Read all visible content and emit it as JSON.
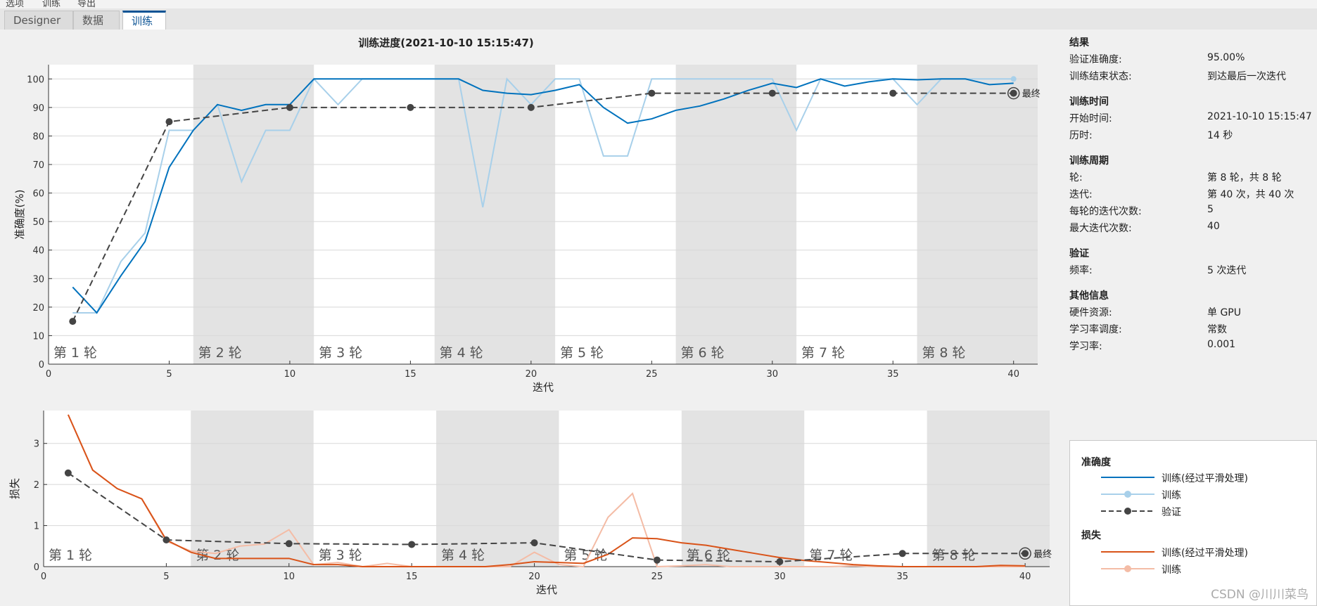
{
  "menubar": {
    "items": [
      "选项",
      "训练",
      "导出"
    ]
  },
  "tabs": [
    {
      "label": "Designer",
      "active": false
    },
    {
      "label": "数据",
      "active": false
    },
    {
      "label": "训练",
      "active": true
    }
  ],
  "plot_title": "训练进度(2021-10-10 15:15:47)",
  "epoch_labels": [
    "第 1 轮",
    "第 2 轮",
    "第 3 轮",
    "第 4 轮",
    "第 5 轮",
    "第 6 轮",
    "第 7 轮",
    "第 8 轮"
  ],
  "final_label": "最终",
  "colors": {
    "smoothed_accuracy": "#0072bd",
    "raw_accuracy": "#a8d0ea",
    "validation": "#444444",
    "smoothed_loss": "#d95319",
    "raw_loss": "#f4bca6",
    "epoch_band": "#e3e3e3"
  },
  "chart_data": [
    {
      "type": "line",
      "xlabel": "迭代",
      "ylabel": "准确度(%)",
      "xlim": [
        0,
        41
      ],
      "ylim": [
        0,
        105
      ],
      "xticks": [
        0,
        5,
        10,
        15,
        20,
        25,
        30,
        35,
        40
      ],
      "yticks": [
        0,
        10,
        20,
        30,
        40,
        50,
        60,
        70,
        80,
        90,
        100
      ],
      "epoch_bands": [
        [
          6,
          11
        ],
        [
          16,
          21
        ],
        [
          26,
          31
        ],
        [
          36,
          41
        ]
      ],
      "epoch_label_x": [
        0.2,
        6.2,
        11.2,
        16.2,
        21.2,
        26.2,
        31.2,
        36.2
      ],
      "series": [
        {
          "name": "训练(经过平滑处理)",
          "x": [
            1,
            2,
            3,
            4,
            5,
            6,
            7,
            8,
            9,
            10,
            11,
            12,
            13,
            14,
            15,
            16,
            17,
            18,
            19,
            20,
            21,
            22,
            23,
            24,
            25,
            26,
            27,
            28,
            29,
            30,
            31,
            32,
            33,
            34,
            35,
            36,
            37,
            38,
            39,
            40
          ],
          "y": [
            27,
            18,
            31,
            43,
            69,
            82,
            91,
            89,
            91,
            91,
            100,
            100,
            100,
            100,
            100,
            100,
            100,
            96,
            95,
            94.5,
            96,
            98,
            90,
            84.5,
            86,
            89,
            90.5,
            93,
            96,
            98.5,
            97,
            100,
            97.5,
            99,
            100,
            99.7,
            100,
            100,
            98,
            98.5
          ]
        },
        {
          "name": "训练",
          "x": [
            1,
            2,
            3,
            4,
            5,
            6,
            7,
            8,
            9,
            10,
            11,
            12,
            13,
            14,
            15,
            16,
            17,
            18,
            19,
            20,
            21,
            22,
            23,
            24,
            25,
            26,
            27,
            28,
            29,
            30,
            31,
            32,
            33,
            34,
            35,
            36,
            37,
            38,
            39,
            40
          ],
          "y": [
            18,
            18,
            36,
            46,
            82,
            82,
            91,
            64,
            82,
            82,
            100,
            91,
            100,
            100,
            100,
            100,
            100,
            55,
            100,
            91,
            100,
            100,
            73,
            73,
            100,
            100,
            100,
            100,
            100,
            100,
            82,
            100,
            100,
            100,
            100,
            91,
            100,
            100,
            100,
            100
          ]
        },
        {
          "name": "验证",
          "x": [
            1,
            5,
            10,
            15,
            20,
            25,
            30,
            35,
            40
          ],
          "y": [
            15,
            85,
            90,
            90,
            90,
            95,
            95,
            95,
            95
          ]
        }
      ]
    },
    {
      "type": "line",
      "xlabel": "迭代",
      "ylabel": "损失",
      "xlim": [
        0,
        41
      ],
      "ylim": [
        0,
        3.8
      ],
      "xticks": [
        0,
        5,
        10,
        15,
        20,
        25,
        30,
        35,
        40
      ],
      "yticks": [
        0,
        1,
        2,
        3
      ],
      "epoch_bands": [
        [
          6,
          11
        ],
        [
          16,
          21
        ],
        [
          26,
          31
        ],
        [
          36,
          41
        ]
      ],
      "epoch_label_x": [
        0.2,
        6.2,
        11.2,
        16.2,
        21.2,
        26.2,
        31.2,
        36.2
      ],
      "series": [
        {
          "name": "训练(经过平滑处理)",
          "x": [
            1,
            2,
            3,
            4,
            5,
            6,
            7,
            8,
            9,
            10,
            11,
            12,
            13,
            14,
            15,
            16,
            17,
            18,
            19,
            20,
            21,
            22,
            23,
            24,
            25,
            26,
            27,
            28,
            29,
            30,
            31,
            32,
            33,
            34,
            35,
            36,
            37,
            38,
            39,
            40
          ],
          "y": [
            3.7,
            2.35,
            1.9,
            1.65,
            0.65,
            0.35,
            0.2,
            0.2,
            0.2,
            0.2,
            0.05,
            0.05,
            0.0,
            0.0,
            0.0,
            0.0,
            0.0,
            0.0,
            0.05,
            0.12,
            0.1,
            0.08,
            0.3,
            0.7,
            0.68,
            0.58,
            0.52,
            0.42,
            0.32,
            0.22,
            0.15,
            0.1,
            0.05,
            0.02,
            0.0,
            0.0,
            0.0,
            0.0,
            0.03,
            0.02
          ]
        },
        {
          "name": "训练",
          "x": [
            1,
            2,
            3,
            4,
            5,
            6,
            7,
            8,
            9,
            10,
            11,
            12,
            13,
            14,
            15,
            16,
            17,
            18,
            19,
            20,
            21,
            22,
            23,
            24,
            25,
            26,
            27,
            28,
            29,
            30,
            31,
            32,
            33,
            34,
            35,
            36,
            37,
            38,
            39,
            40
          ],
          "y": [
            3.7,
            2.35,
            1.9,
            1.65,
            0.62,
            0.38,
            0.32,
            0.5,
            0.55,
            0.9,
            0.05,
            0.1,
            0.0,
            0.08,
            0.0,
            0.0,
            0.0,
            0.0,
            0.0,
            0.35,
            0.05,
            0.0,
            1.2,
            1.78,
            0.0,
            0.02,
            0.05,
            0.0,
            0.0,
            0.0,
            0.0,
            0.0,
            0.02,
            0.0,
            0.0,
            0.0,
            0.0,
            0.0,
            0.0,
            0.0
          ]
        },
        {
          "name": "验证",
          "x": [
            1,
            5,
            10,
            15,
            20,
            25,
            30,
            35,
            40
          ],
          "y": [
            2.28,
            0.65,
            0.56,
            0.54,
            0.58,
            0.16,
            0.12,
            0.32,
            0.32
          ]
        }
      ]
    }
  ],
  "results": {
    "title": "结果",
    "rows": [
      {
        "k": "验证准确度:",
        "v": "95.00%"
      },
      {
        "k": "训练结束状态:",
        "v": "到达最后一次迭代"
      }
    ]
  },
  "time": {
    "title": "训练时间",
    "rows": [
      {
        "k": "开始时间:",
        "v": "2021-10-10 15:15:47"
      },
      {
        "k": "历时:",
        "v": "14 秒"
      }
    ]
  },
  "cycle": {
    "title": "训练周期",
    "rows": [
      {
        "k": "轮:",
        "v": "第 8 轮，共 8 轮"
      },
      {
        "k": "迭代:",
        "v": "第 40 次，共 40 次"
      },
      {
        "k": "每轮的迭代次数:",
        "v": "5"
      },
      {
        "k": "最大迭代次数:",
        "v": "40"
      }
    ]
  },
  "validation": {
    "title": "验证",
    "rows": [
      {
        "k": "频率:",
        "v": "5 次迭代"
      }
    ]
  },
  "other": {
    "title": "其他信息",
    "rows": [
      {
        "k": "硬件资源:",
        "v": "单 GPU"
      },
      {
        "k": "学习率调度:",
        "v": "常数"
      },
      {
        "k": "学习率:",
        "v": "0.001"
      }
    ]
  },
  "legend": {
    "accuracy_title": "准确度",
    "loss_title": "损失",
    "smoothed": "训练(经过平滑处理)",
    "train": "训练",
    "validation": "验证"
  },
  "watermark": "CSDN @川川菜鸟"
}
